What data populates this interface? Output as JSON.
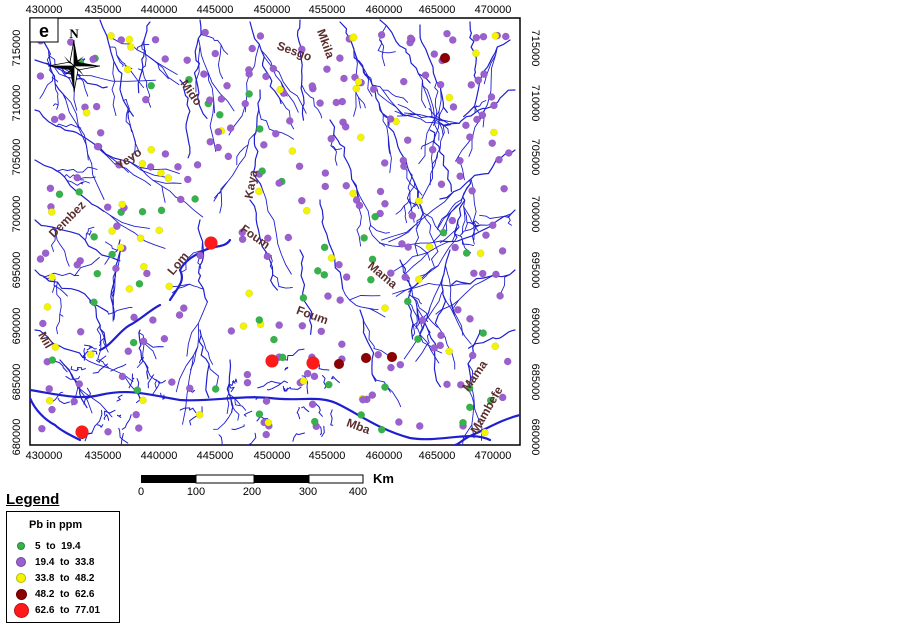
{
  "panel_label": "e",
  "north_label": "N",
  "x_ticks": [
    "430000",
    "435000",
    "440000",
    "445000",
    "450000",
    "455000",
    "460000",
    "465000",
    "470000"
  ],
  "y_ticks": [
    "715000",
    "710000",
    "705000",
    "700000",
    "695000",
    "690000",
    "685000",
    "680000"
  ],
  "scale_bar": {
    "ticks": [
      "0",
      "100",
      "200",
      "300",
      "400"
    ],
    "unit": "Km"
  },
  "rivers": [
    {
      "name": "Sesgo"
    },
    {
      "name": "Mkila"
    },
    {
      "name": "Mido"
    },
    {
      "name": "Yeyo"
    },
    {
      "name": "Dembez"
    },
    {
      "name": "Lom"
    },
    {
      "name": "Kaya"
    },
    {
      "name": "Foum"
    },
    {
      "name": "Mama"
    },
    {
      "name": "Foum"
    },
    {
      "name": "Mba"
    },
    {
      "name": "Mama"
    },
    {
      "name": "Mambefe"
    },
    {
      "name": "Mil"
    }
  ],
  "legend": {
    "title": "Legend",
    "heading": "Pb in ppm",
    "classes": [
      {
        "label": "5  to  19.4",
        "color": "#35b34a"
      },
      {
        "label": "19.4  to  33.8",
        "color": "#9b5fd0"
      },
      {
        "label": "33.8  to  48.2",
        "color": "#f4f400"
      },
      {
        "label": "48.2  to  62.6",
        "color": "#8b0000"
      },
      {
        "label": "62.6  to  77.01",
        "color": "#ff1a1a"
      }
    ]
  },
  "colors": {
    "river": "#1f1fcf",
    "frame": "#000000",
    "label": "#5a2d2d"
  }
}
